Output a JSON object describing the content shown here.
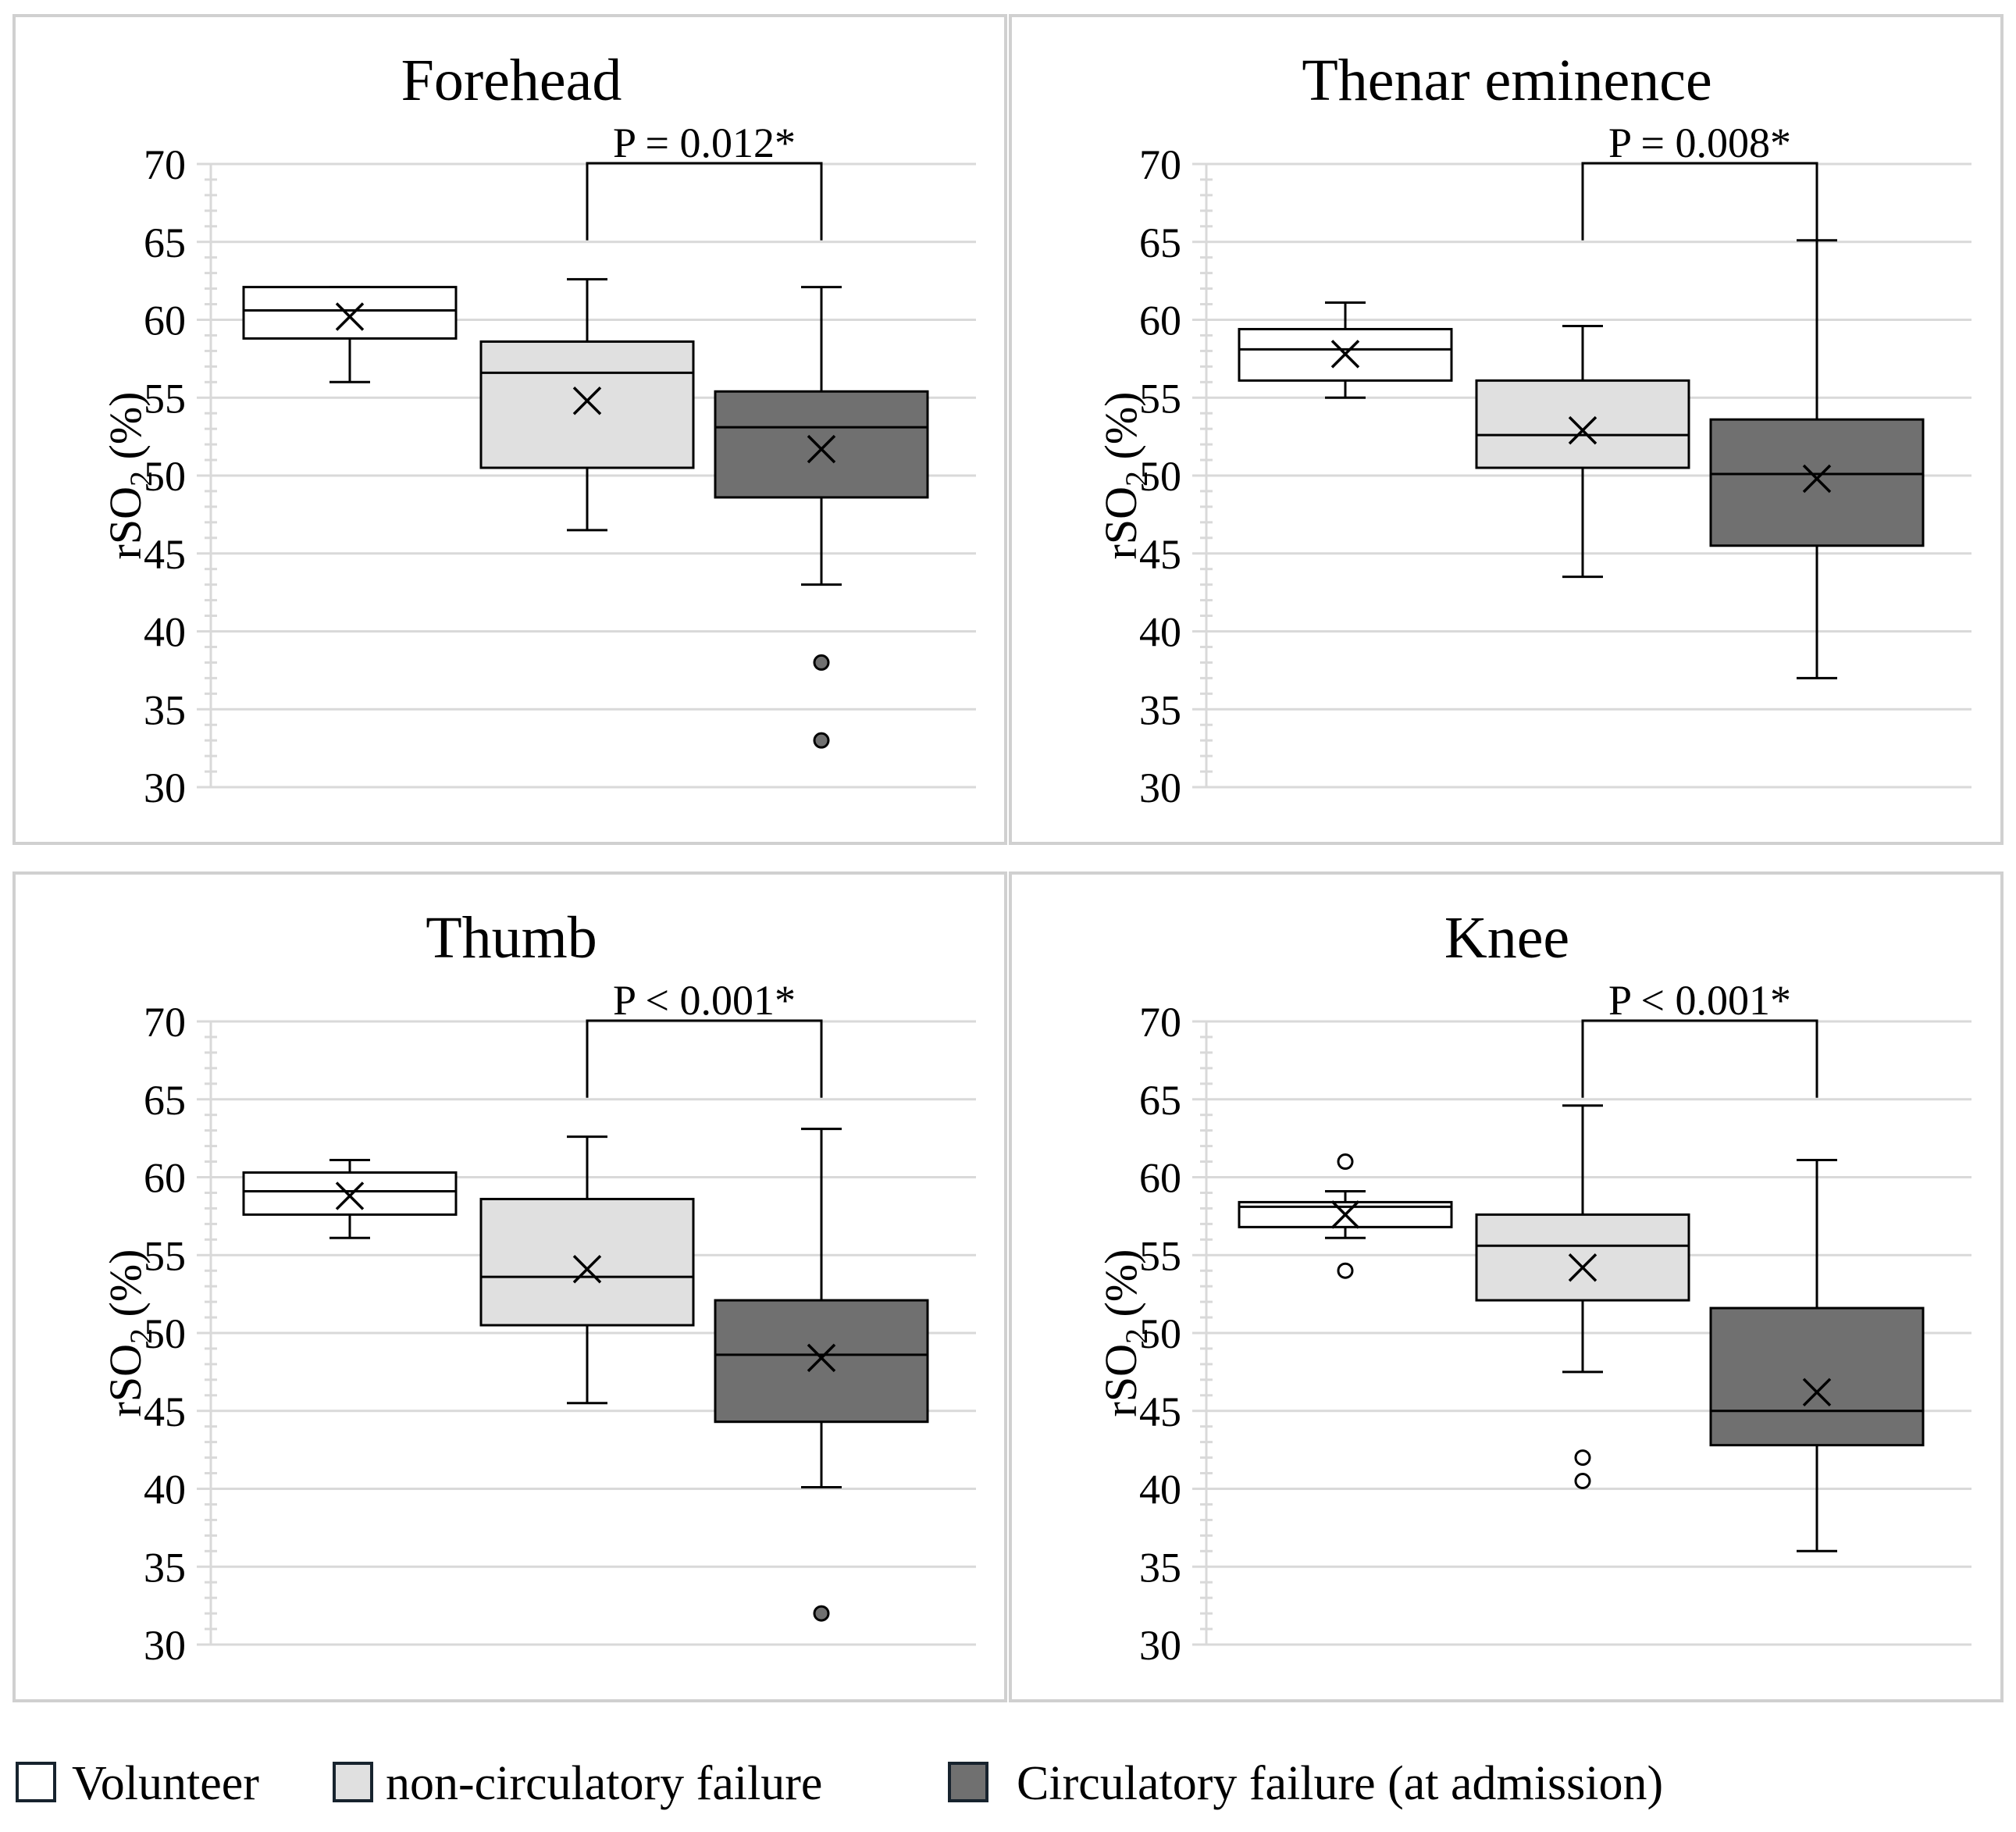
{
  "colors": {
    "volunteer": "#ffffff",
    "non_circulatory": "#e0e0e0",
    "circulatory": "#707070",
    "outlier_filled": "#707070",
    "outlier_open": "#ffffff"
  },
  "legend": {
    "items": [
      {
        "label": "Volunteer",
        "color": "#ffffff"
      },
      {
        "label": "non-circulatory failure",
        "color": "#e0e0e0"
      },
      {
        "label": "Circulatory failure (at admission)",
        "color": "#707070"
      }
    ]
  },
  "chart_data": [
    {
      "type": "box",
      "title": "Forehead",
      "ylabel_main": "rSO",
      "ylabel_sub": "2",
      "ylabel_unit": " (%)",
      "ylim": [
        30,
        70
      ],
      "yticks": [
        30,
        35,
        40,
        45,
        50,
        55,
        60,
        65,
        70
      ],
      "ytick_labels": [
        "30",
        "35",
        "40",
        "45",
        "50",
        "55",
        "60",
        "65",
        "70"
      ],
      "annotation": "P = 0.012*",
      "series": [
        {
          "name": "Volunteer",
          "min": 56,
          "q1": 58.8,
          "median": 60.6,
          "q3": 62.1,
          "max": 62.1,
          "mean": 60.2,
          "outliers": []
        },
        {
          "name": "non-circulatory failure",
          "min": 46.5,
          "q1": 50.5,
          "median": 56.6,
          "q3": 58.6,
          "max": 62.6,
          "mean": 54.8,
          "outliers": []
        },
        {
          "name": "Circulatory failure (at admission)",
          "min": 43,
          "q1": 48.6,
          "median": 53.1,
          "q3": 55.4,
          "max": 62.1,
          "mean": 51.7,
          "outliers": [
            38,
            33
          ]
        }
      ]
    },
    {
      "type": "box",
      "title": "Thenar eminence",
      "ylabel_main": "rSO",
      "ylabel_sub": "2",
      "ylabel_unit": " (%)",
      "ylim": [
        30,
        70
      ],
      "yticks": [
        30,
        35,
        40,
        45,
        50,
        55,
        60,
        65,
        70
      ],
      "ytick_labels": [
        "30",
        "35",
        "40",
        "45",
        "50",
        "55",
        "60",
        "65",
        "70"
      ],
      "annotation": "P = 0.008*",
      "series": [
        {
          "name": "Volunteer",
          "min": 55,
          "q1": 56.1,
          "median": 58.1,
          "q3": 59.4,
          "max": 61.1,
          "mean": 57.8,
          "outliers": []
        },
        {
          "name": "non-circulatory failure",
          "min": 43.5,
          "q1": 50.5,
          "median": 52.6,
          "q3": 56.1,
          "max": 59.6,
          "mean": 52.9,
          "outliers": []
        },
        {
          "name": "Circulatory failure (at admission)",
          "min": 37,
          "q1": 45.5,
          "median": 50.1,
          "q3": 53.6,
          "max": 65.1,
          "mean": 49.8,
          "outliers": []
        }
      ]
    },
    {
      "type": "box",
      "title": "Thumb",
      "ylabel_main": "rSO",
      "ylabel_sub": "2",
      "ylabel_unit": " (%)",
      "ylim": [
        30,
        70
      ],
      "yticks": [
        30,
        35,
        40,
        45,
        50,
        55,
        60,
        65,
        70
      ],
      "ytick_labels": [
        "30",
        "35",
        "40",
        "45",
        "50",
        "55",
        "60",
        "65",
        "70"
      ],
      "annotation": "P < 0.001*",
      "series": [
        {
          "name": "Volunteer",
          "min": 56.1,
          "q1": 57.6,
          "median": 59.1,
          "q3": 60.3,
          "max": 61.1,
          "mean": 58.8,
          "outliers": []
        },
        {
          "name": "non-circulatory failure",
          "min": 45.5,
          "q1": 50.5,
          "median": 53.6,
          "q3": 58.6,
          "max": 62.6,
          "mean": 54.1,
          "outliers": []
        },
        {
          "name": "Circulatory failure (at admission)",
          "min": 40.1,
          "q1": 44.3,
          "median": 48.6,
          "q3": 52.1,
          "max": 63.1,
          "mean": 48.4,
          "outliers": [
            32
          ]
        }
      ]
    },
    {
      "type": "box",
      "title": "Knee",
      "ylabel_main": "rSO",
      "ylabel_sub": "2",
      "ylabel_unit": " (%)",
      "ylim": [
        30,
        70
      ],
      "yticks": [
        30,
        35,
        40,
        45,
        50,
        55,
        60,
        65,
        70
      ],
      "ytick_labels": [
        "30",
        "35",
        "40",
        "45",
        "50",
        "55",
        "60",
        "65",
        "70"
      ],
      "annotation": "P < 0.001*",
      "series": [
        {
          "name": "Volunteer",
          "min": 56.1,
          "q1": 56.8,
          "median": 58.1,
          "q3": 58.4,
          "max": 59.1,
          "mean": 57.6,
          "outliers": [
            61,
            54
          ]
        },
        {
          "name": "non-circulatory failure",
          "min": 47.5,
          "q1": 52.1,
          "median": 55.6,
          "q3": 57.6,
          "max": 64.6,
          "mean": 54.2,
          "outliers": [
            42,
            40.5
          ]
        },
        {
          "name": "Circulatory failure (at admission)",
          "min": 36,
          "q1": 42.8,
          "median": 45,
          "q3": 51.6,
          "max": 61.1,
          "mean": 46.2,
          "outliers": []
        }
      ]
    }
  ]
}
